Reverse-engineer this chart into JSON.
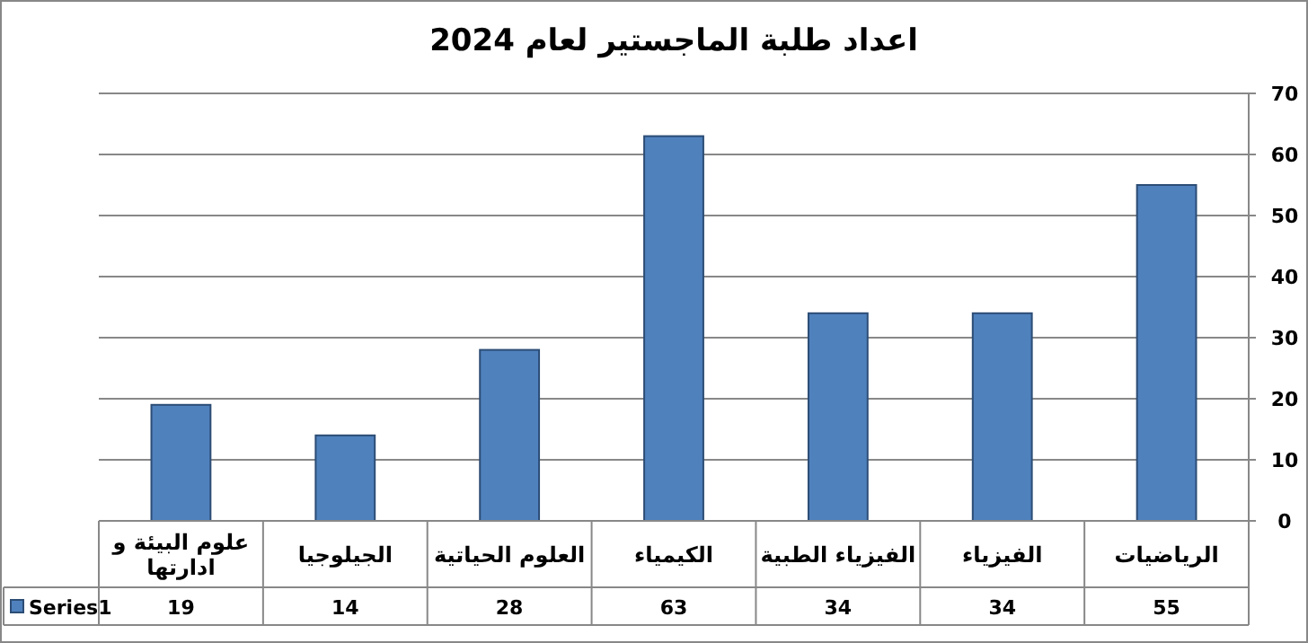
{
  "chart_data": {
    "type": "bar",
    "title": "اعداد طلبة الماجستير لعام 2024",
    "categories": [
      "علوم البيئة و ادارتها",
      "الجيلوجيا",
      "العلوم الحياتية",
      "الكيمياء",
      "الفيزياء الطبية",
      "الفيزياء",
      "الرياضيات"
    ],
    "series": [
      {
        "name": "Series1",
        "color": "#4f81bd",
        "values": [
          19,
          14,
          28,
          63,
          34,
          34,
          55
        ]
      }
    ],
    "ylim": [
      0,
      70
    ],
    "yticks": [
      0,
      10,
      20,
      30,
      40,
      50,
      60,
      70
    ],
    "grid": "y",
    "legend": "bottom left",
    "data_labels": true
  }
}
